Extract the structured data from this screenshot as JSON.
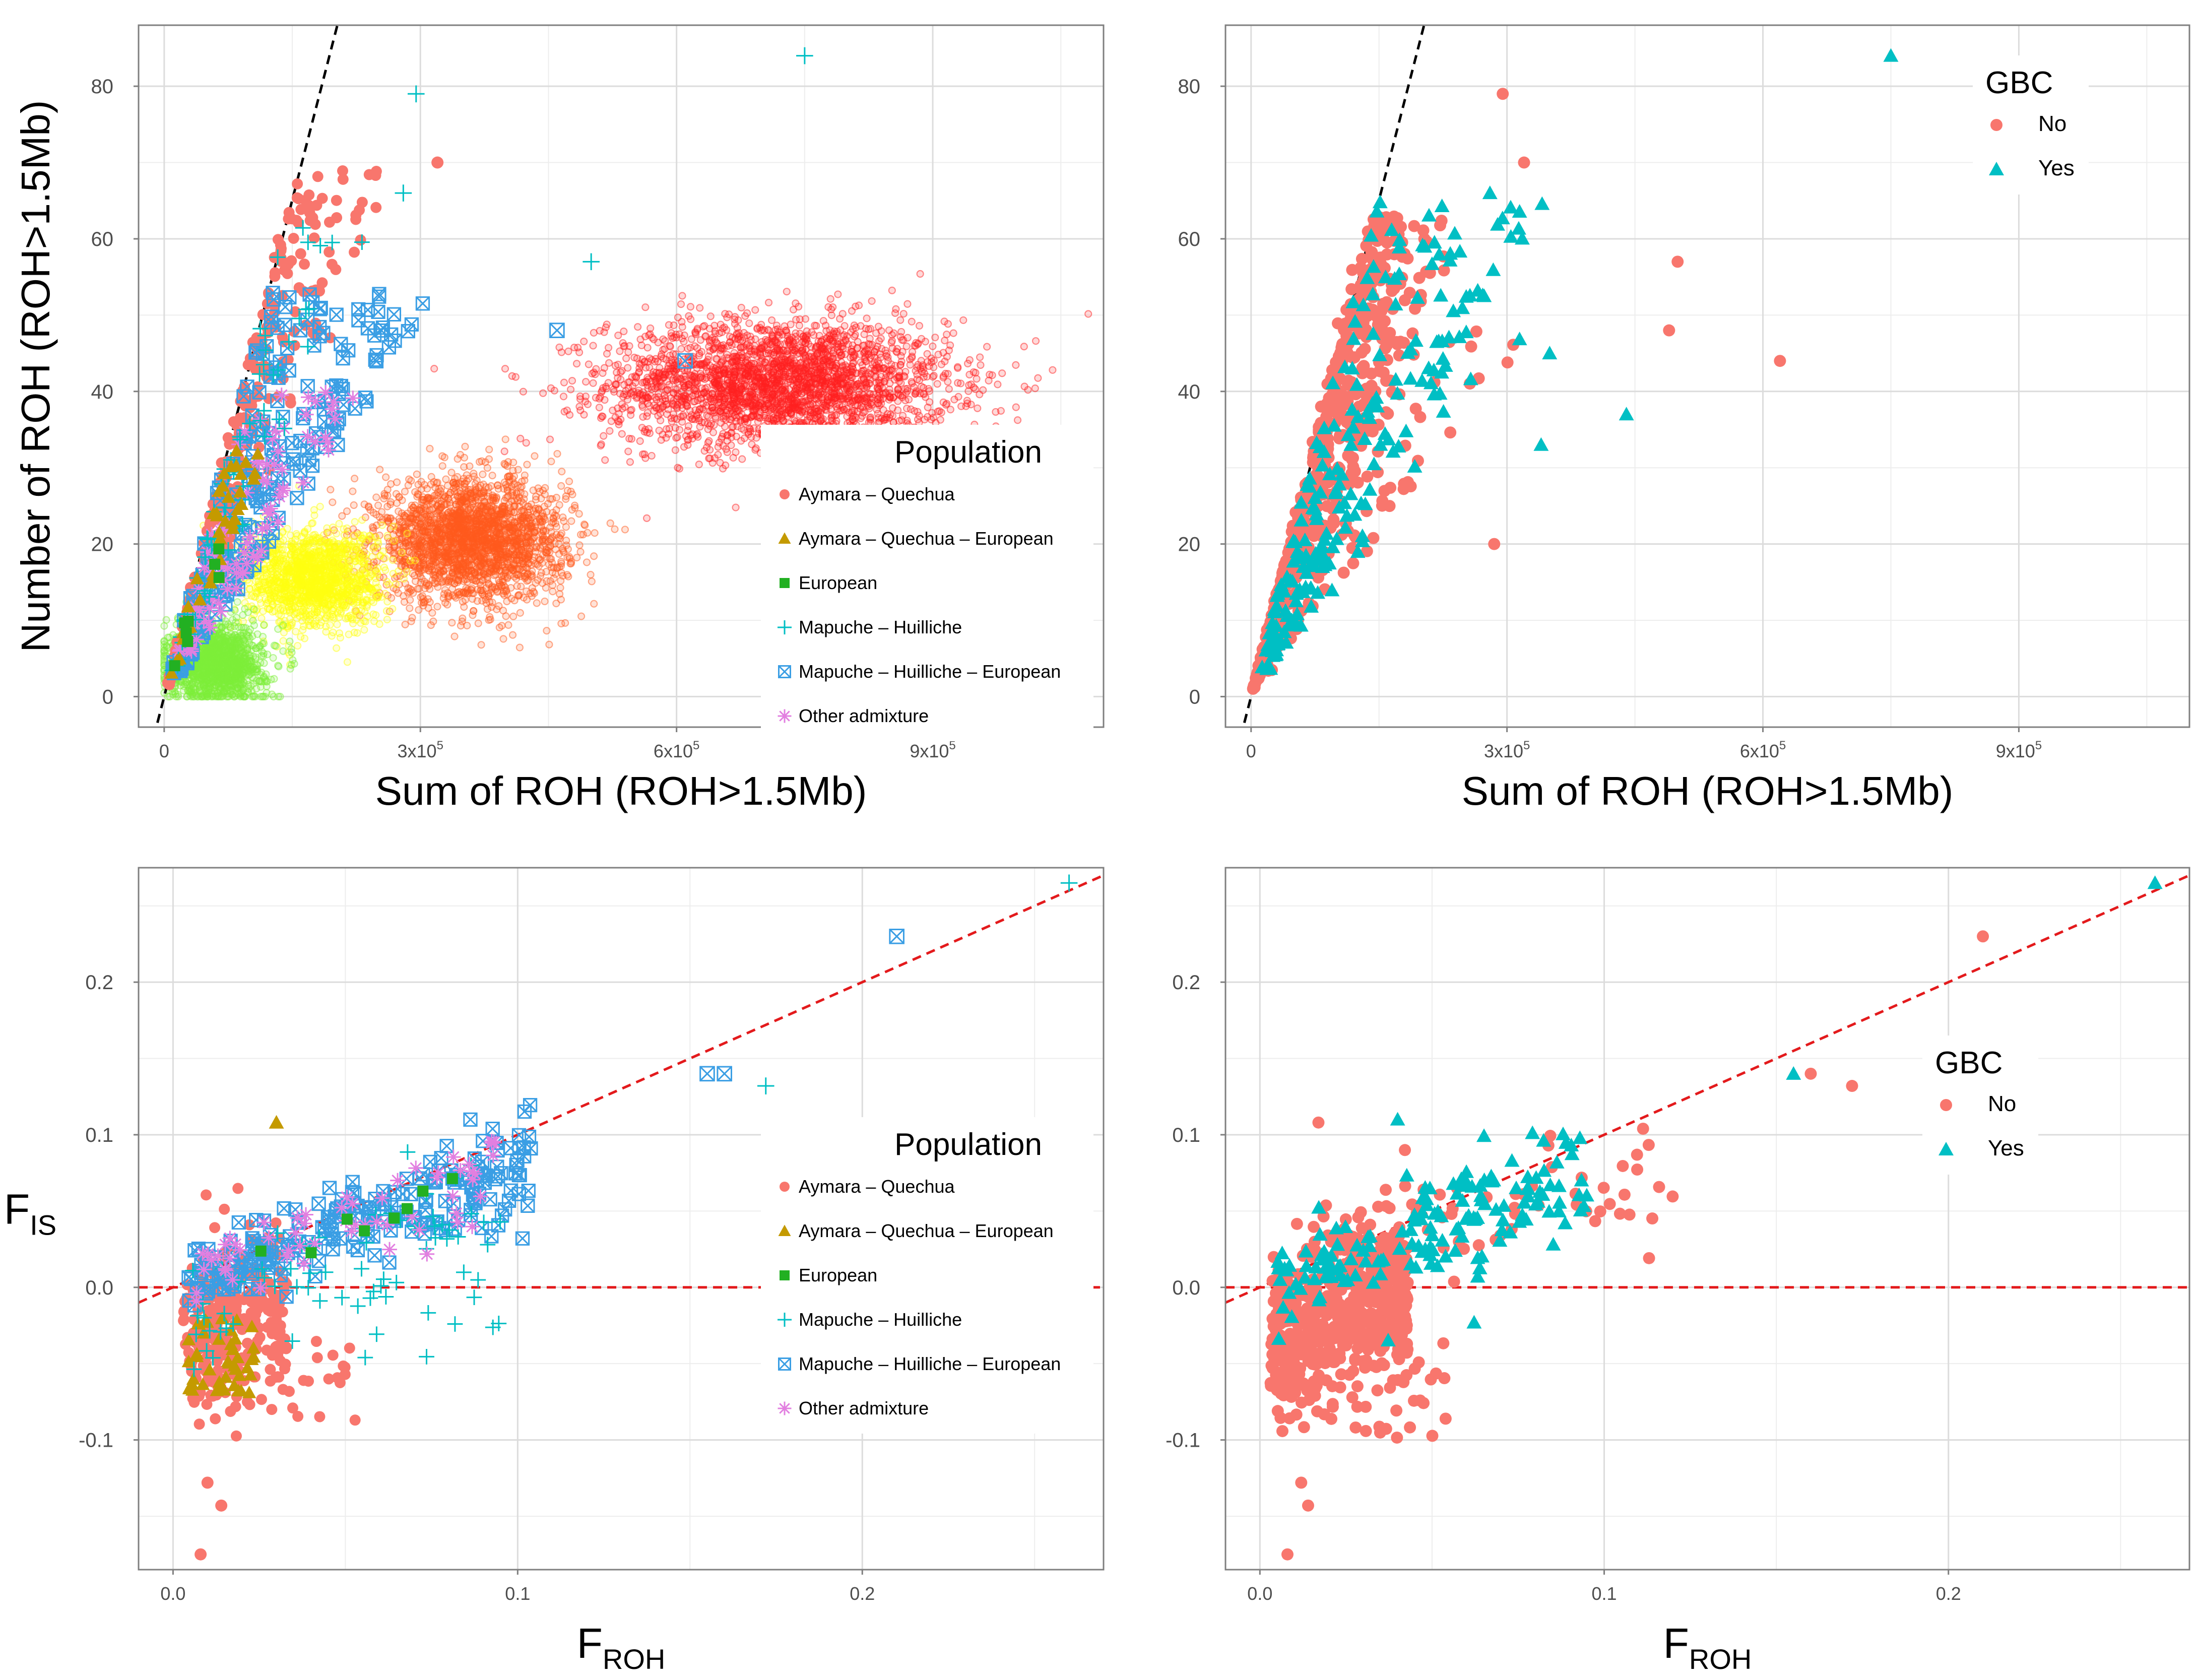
{
  "colors": {
    "aymara_quechua": "#f8766d",
    "aymara_quechua_european": "#c49a00",
    "european": "#22b022",
    "mapuche_huilliche": "#00bfc4",
    "mapuche_huilliche_european": "#3a9ee4",
    "other_admixture": "#e27fe0",
    "gbc_no": "#f8766d",
    "gbc_yes": "#00bfc4",
    "sim_red": "#ff2020",
    "sim_orange": "#ff5a1e",
    "sim_yellow": "#ffff10",
    "sim_green": "#7df03a",
    "ref_black": "#000000",
    "ref_red": "#e31a1c"
  },
  "chart_data": [
    {
      "id": "A",
      "type": "scatter",
      "xlabel": "Sum of ROH (ROH>1.5Mb)",
      "ylabel": "Number of ROH (ROH>1.5Mb)",
      "xlim": [
        -30000,
        1100000
      ],
      "ylim": [
        -4,
        88
      ],
      "xticks": [
        0,
        300000,
        600000,
        900000
      ],
      "xtick_labels": [
        "0",
        "3x10^5",
        "6x10^5",
        "9x10^5"
      ],
      "yticks": [
        0,
        20,
        40,
        60,
        80
      ],
      "ytick_labels": [
        "0",
        "20",
        "40",
        "60",
        "80"
      ],
      "reference_line": {
        "intercept": 0,
        "slope": 0.000434,
        "style": "dashed",
        "color": "black"
      },
      "simulated_clouds": [
        {
          "name": "simulated-aymara-quechua",
          "center_x": 720000,
          "center_y": 41,
          "sd_x": 100000,
          "sd_y": 4.2,
          "n": 2600,
          "color": "sim_red"
        },
        {
          "name": "simulated-mapuche-huilliche",
          "center_x": 360000,
          "center_y": 20.5,
          "sd_x": 55000,
          "sd_y": 4.0,
          "n": 2200,
          "color": "sim_orange"
        },
        {
          "name": "simulated-aymara-quechua-european",
          "center_x": 175000,
          "center_y": 15.5,
          "sd_x": 40000,
          "sd_y": 3.2,
          "n": 1400,
          "color": "sim_yellow"
        },
        {
          "name": "simulated-other-admixture",
          "center_x": 60000,
          "center_y": 4.5,
          "sd_x": 28000,
          "sd_y": 2.5,
          "n": 1400,
          "color": "sim_green"
        }
      ],
      "legend": {
        "title": "Population",
        "position": "right",
        "entries": [
          "Aymara – Quechua",
          "Aymara – Quechua – European",
          "European",
          "Mapuche – Huilliche",
          "Mapuche – Huilliche – European",
          "Other admixture"
        ],
        "shapes": [
          "circle",
          "triangle",
          "square",
          "plus",
          "boxed-x",
          "star"
        ],
        "colors": [
          "aymara_quechua",
          "aymara_quechua_european",
          "european",
          "mapuche_huilliche",
          "mapuche_huilliche_european",
          "other_admixture"
        ]
      },
      "highlighted_points": [
        {
          "population": "Mapuche – Huilliche",
          "x": 750000,
          "y": 84
        },
        {
          "population": "Mapuche – Huilliche",
          "x": 295000,
          "y": 79
        },
        {
          "population": "Aymara – Quechua",
          "x": 320000,
          "y": 70
        },
        {
          "population": "Mapuche – Huilliche",
          "x": 280000,
          "y": 66
        },
        {
          "population": "Mapuche – Huilliche",
          "x": 500000,
          "y": 57
        },
        {
          "population": "Mapuche – Huilliche – European",
          "x": 610000,
          "y": 44
        },
        {
          "population": "Mapuche – Huilliche – European",
          "x": 460000,
          "y": 48
        }
      ]
    },
    {
      "id": "B",
      "type": "scatter",
      "xlabel": "Sum of ROH (ROH>1.5Mb)",
      "ylabel": "",
      "xlim": [
        -30000,
        1100000
      ],
      "ylim": [
        -4,
        88
      ],
      "xticks": [
        0,
        300000,
        600000,
        900000
      ],
      "xtick_labels": [
        "0",
        "3x10^5",
        "6x10^5",
        "9x10^5"
      ],
      "yticks": [
        0,
        20,
        40,
        60,
        80
      ],
      "ytick_labels": [
        "0",
        "20",
        "40",
        "60",
        "80"
      ],
      "reference_line": {
        "intercept": 0,
        "slope": 0.000434,
        "style": "dashed",
        "color": "black"
      },
      "legend": {
        "title": "GBC",
        "position": "top-right",
        "entries": [
          "No",
          "Yes"
        ],
        "shapes": [
          "circle",
          "triangle"
        ],
        "colors": [
          "gbc_no",
          "gbc_yes"
        ]
      },
      "highlighted_points": [
        {
          "group": "Yes",
          "x": 750000,
          "y": 84
        },
        {
          "group": "No",
          "x": 295000,
          "y": 79
        },
        {
          "group": "No",
          "x": 320000,
          "y": 70
        },
        {
          "group": "Yes",
          "x": 280000,
          "y": 66
        },
        {
          "group": "No",
          "x": 500000,
          "y": 57
        },
        {
          "group": "No",
          "x": 620000,
          "y": 44
        },
        {
          "group": "No",
          "x": 490000,
          "y": 48
        },
        {
          "group": "Yes",
          "x": 440000,
          "y": 37
        },
        {
          "group": "Yes",
          "x": 350000,
          "y": 45
        },
        {
          "group": "Yes",
          "x": 340000,
          "y": 33
        },
        {
          "group": "No",
          "x": 285000,
          "y": 20
        }
      ]
    },
    {
      "id": "C",
      "type": "scatter",
      "xlabel": "F_ROH",
      "ylabel": "F_IS",
      "xlim": [
        -0.01,
        0.27
      ],
      "ylim": [
        -0.185,
        0.275
      ],
      "xticks": [
        0.0,
        0.1,
        0.2
      ],
      "xtick_labels": [
        "0.0",
        "0.1",
        "0.2"
      ],
      "yticks": [
        -0.1,
        0.0,
        0.1,
        0.2
      ],
      "ytick_labels": [
        "-0.1",
        "0.0",
        "0.1",
        "0.2"
      ],
      "reference_lines": [
        {
          "intercept": 0,
          "slope": 1,
          "style": "dashed",
          "color": "red"
        },
        {
          "intercept": 0,
          "slope": 0,
          "style": "dashed",
          "color": "red"
        }
      ],
      "legend": {
        "title": "Population",
        "position": "right",
        "entries": [
          "Aymara – Quechua",
          "Aymara – Quechua – European",
          "European",
          "Mapuche – Huilliche",
          "Mapuche – Huilliche – European",
          "Other admixture"
        ],
        "shapes": [
          "circle",
          "triangle",
          "square",
          "plus",
          "boxed-x",
          "star"
        ],
        "colors": [
          "aymara_quechua",
          "aymara_quechua_european",
          "european",
          "mapuche_huilliche",
          "mapuche_huilliche_european",
          "other_admixture"
        ]
      },
      "highlighted_points": [
        {
          "population": "Mapuche – Huilliche",
          "x": 0.26,
          "y": 0.265
        },
        {
          "population": "Mapuche – Huilliche – European",
          "x": 0.21,
          "y": 0.23
        },
        {
          "population": "Mapuche – Huilliche – European",
          "x": 0.155,
          "y": 0.14
        },
        {
          "population": "Mapuche – Huilliche – European",
          "x": 0.16,
          "y": 0.14
        },
        {
          "population": "Mapuche – Huilliche",
          "x": 0.172,
          "y": 0.132
        },
        {
          "population": "Aymara – Quechua",
          "x": 0.008,
          "y": -0.175
        },
        {
          "population": "Aymara – Quechua",
          "x": 0.01,
          "y": -0.128
        },
        {
          "population": "Aymara – Quechua",
          "x": 0.014,
          "y": -0.143
        },
        {
          "population": "Aymara – Quechua – European",
          "x": 0.03,
          "y": 0.108
        }
      ]
    },
    {
      "id": "D",
      "type": "scatter",
      "xlabel": "F_ROH",
      "ylabel": "",
      "xlim": [
        -0.01,
        0.27
      ],
      "ylim": [
        -0.185,
        0.275
      ],
      "xticks": [
        0.0,
        0.1,
        0.2
      ],
      "xtick_labels": [
        "0.0",
        "0.1",
        "0.2"
      ],
      "yticks": [
        -0.1,
        0.0,
        0.1,
        0.2
      ],
      "ytick_labels": [
        "-0.1",
        "0.0",
        "0.1",
        "0.2"
      ],
      "reference_lines": [
        {
          "intercept": 0,
          "slope": 1,
          "style": "dashed",
          "color": "red"
        },
        {
          "intercept": 0,
          "slope": 0,
          "style": "dashed",
          "color": "red"
        }
      ],
      "legend": {
        "title": "GBC",
        "position": "right",
        "entries": [
          "No",
          "Yes"
        ],
        "shapes": [
          "circle",
          "triangle"
        ],
        "colors": [
          "gbc_no",
          "gbc_yes"
        ]
      },
      "highlighted_points": [
        {
          "group": "Yes",
          "x": 0.26,
          "y": 0.265
        },
        {
          "group": "No",
          "x": 0.21,
          "y": 0.23
        },
        {
          "group": "Yes",
          "x": 0.155,
          "y": 0.14
        },
        {
          "group": "No",
          "x": 0.16,
          "y": 0.14
        },
        {
          "group": "No",
          "x": 0.172,
          "y": 0.132
        },
        {
          "group": "No",
          "x": 0.008,
          "y": -0.175
        },
        {
          "group": "No",
          "x": 0.012,
          "y": -0.128
        },
        {
          "group": "No",
          "x": 0.014,
          "y": -0.143
        },
        {
          "group": "No",
          "x": 0.017,
          "y": 0.108
        },
        {
          "group": "Yes",
          "x": 0.04,
          "y": 0.11
        }
      ]
    }
  ]
}
